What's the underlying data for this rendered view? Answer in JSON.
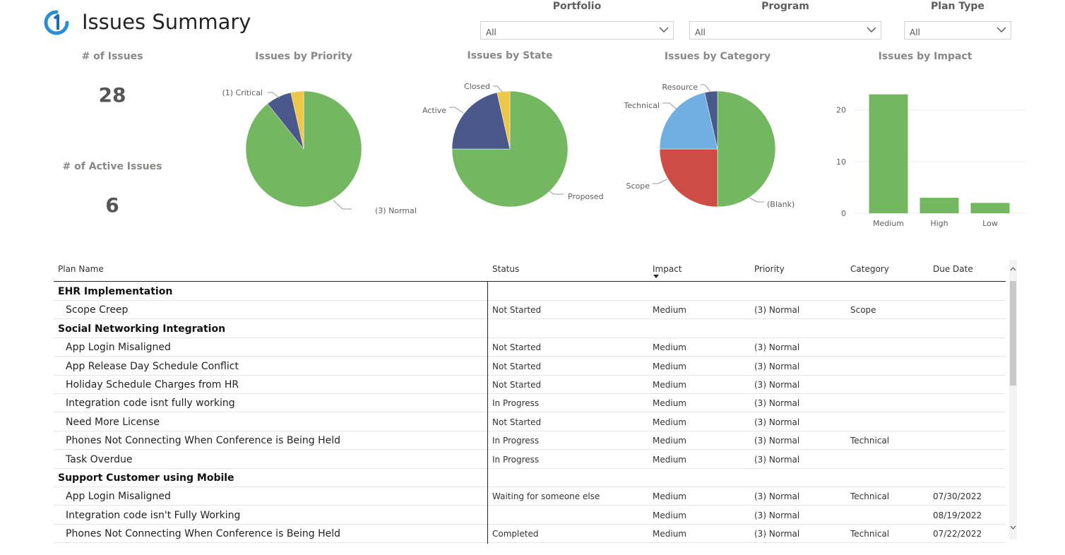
{
  "header": {
    "title": "Issues Summary"
  },
  "filters": [
    {
      "label": "Portfolio",
      "value": "All"
    },
    {
      "label": "Program",
      "value": "All"
    },
    {
      "label": "Plan Type",
      "value": "All"
    }
  ],
  "cards": {
    "issues_label": "# of Issues",
    "issues_value": "28",
    "active_label": "# of Active Issues",
    "active_value": "6"
  },
  "chart_data": [
    {
      "type": "pie",
      "title": "Issues by Priority",
      "labels": [
        "(3) Normal",
        "(1) Critical",
        ""
      ],
      "values": [
        25,
        2,
        1
      ],
      "colors": [
        "#73b761",
        "#4a588a",
        "#ecc846"
      ]
    },
    {
      "type": "pie",
      "title": "Issues by State",
      "labels": [
        "Proposed",
        "Active",
        "Closed"
      ],
      "values": [
        21,
        6,
        1
      ],
      "colors": [
        "#73b761",
        "#4a588a",
        "#ecc846"
      ]
    },
    {
      "type": "pie",
      "title": "Issues by Category",
      "labels": [
        "(Blank)",
        "Scope",
        "Technical",
        "Resource"
      ],
      "values": [
        14,
        7,
        6,
        1
      ],
      "colors": [
        "#73b761",
        "#cd4c46",
        "#71afe2",
        "#4a588a"
      ]
    },
    {
      "type": "bar",
      "title": "Issues by Impact",
      "categories": [
        "Medium",
        "High",
        "Low"
      ],
      "values": [
        23,
        3,
        2
      ],
      "ylim": [
        0,
        25
      ],
      "yticks": [
        "0",
        "10",
        "20"
      ],
      "grid": true,
      "color": "#73b761"
    }
  ],
  "table": {
    "columns": [
      "Plan Name",
      "Status",
      "Impact",
      "Priority",
      "Category",
      "Due Date"
    ],
    "rows": [
      {
        "group": "EHR Implementation"
      },
      {
        "name": "Scope Creep",
        "status": "Not Started",
        "impact": "Medium",
        "priority": "(3) Normal",
        "category": "Scope",
        "due": ""
      },
      {
        "group": "Social Networking Integration"
      },
      {
        "name": "App Login Misaligned",
        "status": "Not Started",
        "impact": "Medium",
        "priority": "(3) Normal",
        "category": "",
        "due": ""
      },
      {
        "name": "App Release Day Schedule Conflict",
        "status": "Not Started",
        "impact": "Medium",
        "priority": "(3) Normal",
        "category": "",
        "due": ""
      },
      {
        "name": "Holiday Schedule Charges from HR",
        "status": "Not Started",
        "impact": "Medium",
        "priority": "(3) Normal",
        "category": "",
        "due": ""
      },
      {
        "name": "Integration code isnt fully working",
        "status": "In Progress",
        "impact": "Medium",
        "priority": "(3) Normal",
        "category": "",
        "due": ""
      },
      {
        "name": "Need More License",
        "status": "Not Started",
        "impact": "Medium",
        "priority": "(3) Normal",
        "category": "",
        "due": ""
      },
      {
        "name": "Phones Not Connecting When Conference is Being Held",
        "status": "In Progress",
        "impact": "Medium",
        "priority": "(3) Normal",
        "category": "Technical",
        "due": ""
      },
      {
        "name": "Task Overdue",
        "status": "In Progress",
        "impact": "Medium",
        "priority": "(3) Normal",
        "category": "",
        "due": ""
      },
      {
        "group": "Support Customer using Mobile"
      },
      {
        "name": "App Login Misaligned",
        "status": "Waiting for someone else",
        "impact": "Medium",
        "priority": "(3) Normal",
        "category": "Technical",
        "due": "07/30/2022"
      },
      {
        "name": "Integration code isn't Fully Working",
        "status": "",
        "impact": "Medium",
        "priority": "(3) Normal",
        "category": "",
        "due": "08/19/2022"
      },
      {
        "name": "Phones Not Connecting When Conference is Being Held",
        "status": "Completed",
        "impact": "Medium",
        "priority": "(3) Normal",
        "category": "Technical",
        "due": "07/22/2022"
      }
    ]
  }
}
